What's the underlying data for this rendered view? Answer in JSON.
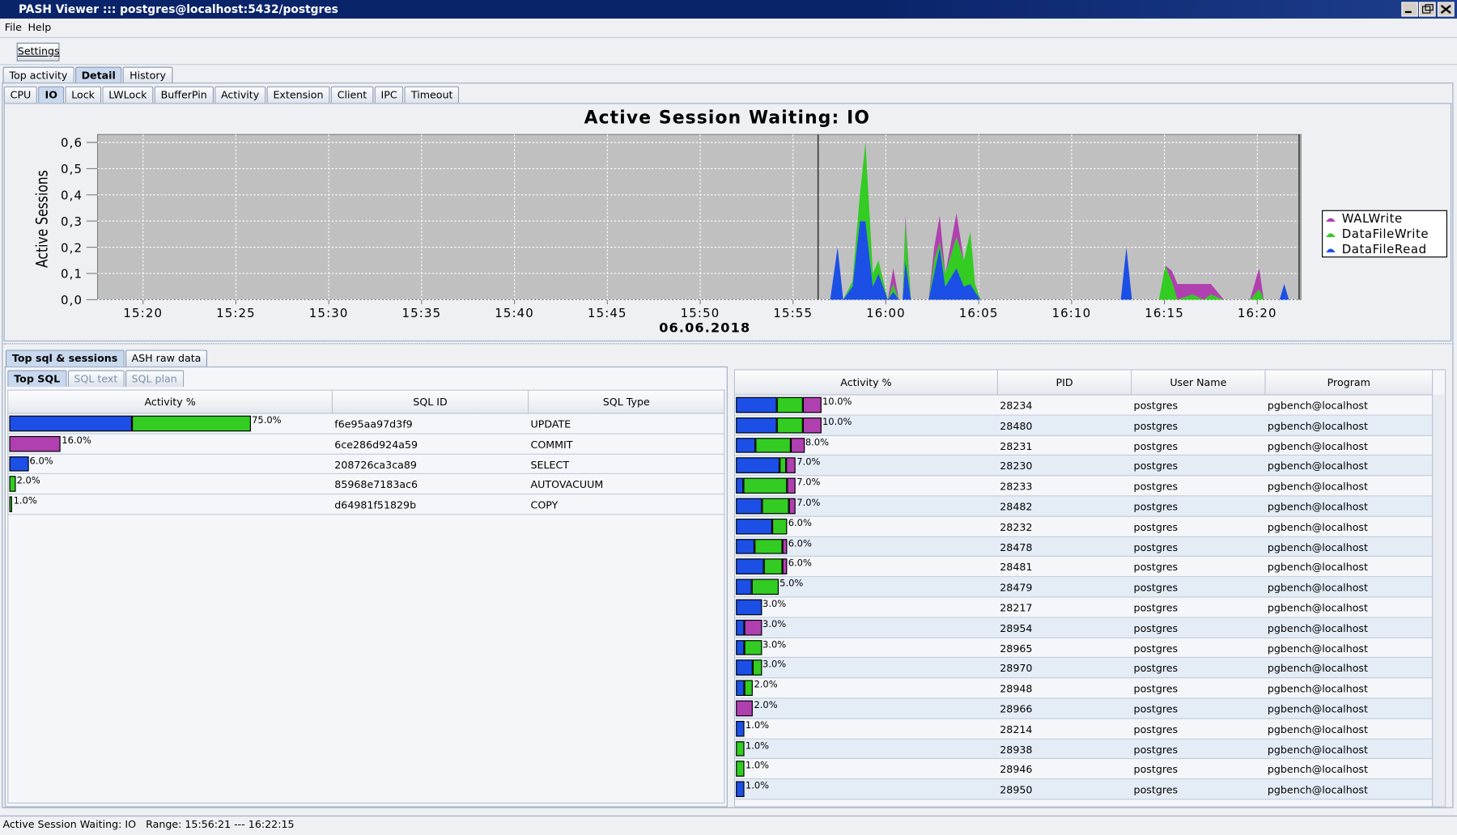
{
  "window": {
    "title": "PASH Viewer ::: postgres@localhost:5432/postgres"
  },
  "menu": [
    "File",
    "Help"
  ],
  "toolbar": {
    "settings": "Settings"
  },
  "tabs": {
    "main": [
      "Top activity",
      "Detail",
      "History"
    ],
    "wait_classes": [
      "CPU",
      "IO",
      "Lock",
      "LWLock",
      "BufferPin",
      "Activity",
      "Extension",
      "Client",
      "IPC",
      "Timeout"
    ],
    "bottom": [
      "Top sql & sessions",
      "ASH raw data"
    ],
    "sql": [
      "Top SQL",
      "SQL text",
      "SQL plan"
    ]
  },
  "chart_data": {
    "type": "area",
    "title": "Active Session Waiting: IO",
    "y_label": "Active Sessions",
    "x_label": "06.06.2018",
    "stacked": true,
    "grid": true,
    "xlim": [
      917.55,
      982.35
    ],
    "ylim": [
      0,
      0.63
    ],
    "xticks": [
      {
        "value": 920,
        "label": "15:20"
      },
      {
        "value": 925,
        "label": "15:25"
      },
      {
        "value": 930,
        "label": "15:30"
      },
      {
        "value": 935,
        "label": "15:35"
      },
      {
        "value": 940,
        "label": "15:40"
      },
      {
        "value": 945,
        "label": "15:45"
      },
      {
        "value": 950,
        "label": "15:50"
      },
      {
        "value": 955,
        "label": "15:55"
      },
      {
        "value": 960,
        "label": "16:00"
      },
      {
        "value": 965,
        "label": "16:05"
      },
      {
        "value": 970,
        "label": "16:10"
      },
      {
        "value": 975,
        "label": "16:15"
      },
      {
        "value": 980,
        "label": "16:20"
      }
    ],
    "yticks": [
      {
        "value": 0,
        "label": "0,0"
      },
      {
        "value": 0.1,
        "label": "0,1"
      },
      {
        "value": 0.2,
        "label": "0,2"
      },
      {
        "value": 0.3,
        "label": "0,3"
      },
      {
        "value": 0.4,
        "label": "0,4"
      },
      {
        "value": 0.5,
        "label": "0,5"
      },
      {
        "value": 0.6,
        "label": "0,6"
      }
    ],
    "range": [
      956.35,
      982.25
    ],
    "x": [
      917.55,
      957.0,
      957.4,
      957.7,
      958.2,
      958.6,
      958.9,
      959.3,
      959.6,
      960.1,
      960.4,
      960.7,
      960.9,
      961.05,
      961.35,
      962.3,
      962.6,
      962.9,
      963.2,
      963.8,
      964.2,
      964.55,
      964.8,
      965.1,
      972.65,
      972.95,
      973.25,
      974.7,
      975.05,
      975.4,
      975.7,
      976.5,
      977.1,
      977.5,
      978.2,
      979.6,
      980.1,
      980.35,
      981.2,
      981.45,
      981.7,
      982.35
    ],
    "series": [
      {
        "name": "WALWrite",
        "color": "#b040b0",
        "values": [
          0,
          0,
          0,
          0,
          0,
          0,
          0,
          0,
          0,
          0,
          0.06,
          0,
          0,
          0.02,
          0,
          0,
          0.05,
          0.1,
          0,
          0.09,
          0,
          0,
          0,
          0,
          0,
          0,
          0,
          0,
          0,
          0.04,
          0.06,
          0.04,
          0.06,
          0.04,
          0,
          0,
          0.08,
          0,
          0,
          0,
          0,
          0
        ]
      },
      {
        "name": "DataFileWrite",
        "color": "#33cc22",
        "values": [
          0,
          0,
          0,
          0,
          0.02,
          0.1,
          0.3,
          0.05,
          0.05,
          0,
          0.03,
          0,
          0,
          0.15,
          0,
          0,
          0.05,
          0.02,
          0.05,
          0.12,
          0.1,
          0.2,
          0.03,
          0,
          0,
          0,
          0,
          0,
          0.13,
          0.07,
          0,
          0.02,
          0,
          0.02,
          0,
          0,
          0.04,
          0,
          0,
          0,
          0,
          0
        ]
      },
      {
        "name": "DataFileRead",
        "color": "#1c4fe6",
        "values": [
          0,
          0,
          0.2,
          0,
          0.05,
          0.3,
          0.3,
          0.05,
          0.1,
          0,
          0.03,
          0,
          0,
          0.15,
          0,
          0,
          0.1,
          0.2,
          0.05,
          0.12,
          0.05,
          0.06,
          0.03,
          0,
          0,
          0.2,
          0,
          0,
          0,
          0,
          0,
          0,
          0,
          0,
          0,
          0,
          0,
          0,
          0,
          0.06,
          0,
          0
        ]
      }
    ]
  },
  "top_sql": {
    "columns": [
      "Activity %",
      "SQL ID",
      "SQL Type"
    ],
    "rows": [
      {
        "activity": "75.0%",
        "bar": [
          38,
          37,
          0
        ],
        "sql_id": "f6e95aa97d3f9",
        "sql_type": "UPDATE"
      },
      {
        "activity": "16.0%",
        "bar": [
          0,
          0,
          16
        ],
        "sql_id": "6ce286d924a59",
        "sql_type": "COMMIT"
      },
      {
        "activity": "6.0%",
        "bar": [
          6,
          0,
          0
        ],
        "sql_id": "208726ca3ca89",
        "sql_type": "SELECT"
      },
      {
        "activity": "2.0%",
        "bar": [
          0,
          2,
          0
        ],
        "sql_id": "85968e7183ac6",
        "sql_type": "AUTOVACUUM"
      },
      {
        "activity": "1.0%",
        "bar": [
          0,
          1,
          0
        ],
        "sql_id": "d64981f51829b",
        "sql_type": "COPY"
      }
    ]
  },
  "sessions": {
    "columns": [
      "Activity %",
      "PID",
      "User Name",
      "Program"
    ],
    "rows": [
      {
        "activity": "10.0%",
        "bar": [
          4.8,
          3,
          2.2
        ],
        "pid": "28234",
        "user": "postgres",
        "program": "pgbench@localhost"
      },
      {
        "activity": "10.0%",
        "bar": [
          4.8,
          3,
          2.2
        ],
        "pid": "28480",
        "user": "postgres",
        "program": "pgbench@localhost"
      },
      {
        "activity": "8.0%",
        "bar": [
          2.3,
          4.1,
          1.6
        ],
        "pid": "28231",
        "user": "postgres",
        "program": "pgbench@localhost"
      },
      {
        "activity": "7.0%",
        "bar": [
          5.1,
          0.8,
          1.1
        ],
        "pid": "28230",
        "user": "postgres",
        "program": "pgbench@localhost"
      },
      {
        "activity": "7.0%",
        "bar": [
          0.9,
          5.1,
          1.0
        ],
        "pid": "28233",
        "user": "postgres",
        "program": "pgbench@localhost"
      },
      {
        "activity": "7.0%",
        "bar": [
          3,
          3.2,
          0.8
        ],
        "pid": "28482",
        "user": "postgres",
        "program": "pgbench@localhost"
      },
      {
        "activity": "6.0%",
        "bar": [
          4.2,
          1.8,
          0
        ],
        "pid": "28232",
        "user": "postgres",
        "program": "pgbench@localhost"
      },
      {
        "activity": "6.0%",
        "bar": [
          2.2,
          3.2,
          0.6
        ],
        "pid": "28478",
        "user": "postgres",
        "program": "pgbench@localhost"
      },
      {
        "activity": "6.0%",
        "bar": [
          3.3,
          2.1,
          0.6
        ],
        "pid": "28481",
        "user": "postgres",
        "program": "pgbench@localhost"
      },
      {
        "activity": "5.0%",
        "bar": [
          1.8,
          3.2,
          0
        ],
        "pid": "28479",
        "user": "postgres",
        "program": "pgbench@localhost"
      },
      {
        "activity": "3.0%",
        "bar": [
          3,
          0,
          0
        ],
        "pid": "28217",
        "user": "postgres",
        "program": "pgbench@localhost"
      },
      {
        "activity": "3.0%",
        "bar": [
          1,
          0,
          2
        ],
        "pid": "28954",
        "user": "postgres",
        "program": "pgbench@localhost"
      },
      {
        "activity": "3.0%",
        "bar": [
          1,
          2,
          0
        ],
        "pid": "28965",
        "user": "postgres",
        "program": "pgbench@localhost"
      },
      {
        "activity": "3.0%",
        "bar": [
          2,
          1,
          0
        ],
        "pid": "28970",
        "user": "postgres",
        "program": "pgbench@localhost"
      },
      {
        "activity": "2.0%",
        "bar": [
          1,
          1,
          0
        ],
        "pid": "28948",
        "user": "postgres",
        "program": "pgbench@localhost"
      },
      {
        "activity": "2.0%",
        "bar": [
          0,
          0,
          2
        ],
        "pid": "28966",
        "user": "postgres",
        "program": "pgbench@localhost"
      },
      {
        "activity": "1.0%",
        "bar": [
          1,
          0,
          0
        ],
        "pid": "28214",
        "user": "postgres",
        "program": "pgbench@localhost"
      },
      {
        "activity": "1.0%",
        "bar": [
          0,
          1,
          0
        ],
        "pid": "28938",
        "user": "postgres",
        "program": "pgbench@localhost"
      },
      {
        "activity": "1.0%",
        "bar": [
          0,
          1,
          0
        ],
        "pid": "28946",
        "user": "postgres",
        "program": "pgbench@localhost"
      },
      {
        "activity": "1.0%",
        "bar": [
          1,
          0,
          0
        ],
        "pid": "28950",
        "user": "postgres",
        "program": "pgbench@localhost"
      }
    ]
  },
  "status": "Active Session Waiting: IO   Range: 15:56:21 --- 16:22:15"
}
